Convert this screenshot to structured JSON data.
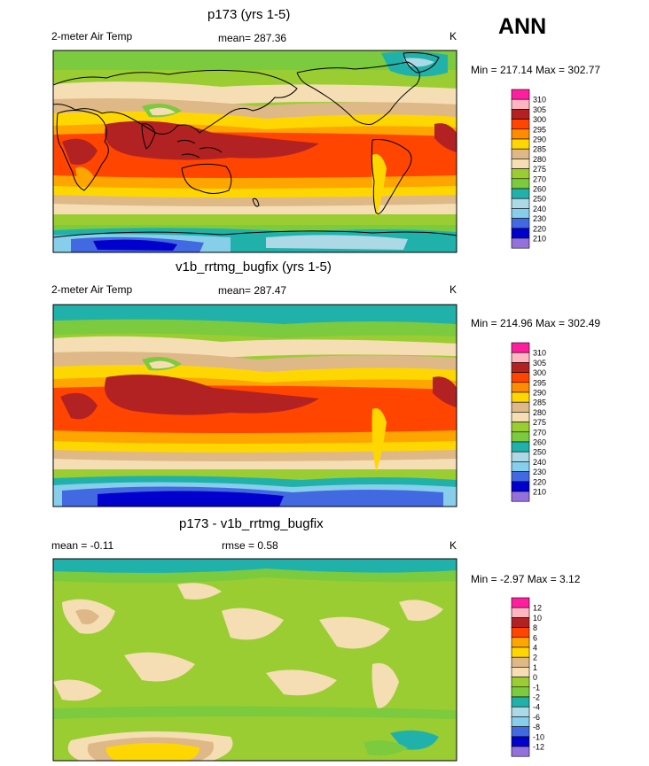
{
  "season_label": "ANN",
  "colors": {
    "pink": "#ff1e9e",
    "lightpink": "#ffb6c1",
    "darkred": "#b22222",
    "red": "#ff4500",
    "orange": "#ffa500",
    "yellow": "#ffd700",
    "tan": "#deb887",
    "cream": "#f5deb3",
    "olive": "#9acd32",
    "green": "#7cca3e",
    "teal": "#20b2aa",
    "lightblue": "#add8e6",
    "skyblue": "#87ceeb",
    "blue": "#4169e1",
    "navy": "#0000cd",
    "purple": "#9370db"
  },
  "panels": [
    {
      "title": "p173 (yrs 1-5)",
      "left_label": "2-meter Air Temp",
      "center_label": "mean= 287.36",
      "unit": "K",
      "minmax": "Min = 217.14 Max = 302.77",
      "legend": [
        "310",
        "305",
        "300",
        "295",
        "290",
        "285",
        "280",
        "275",
        "270",
        "260",
        "250",
        "240",
        "230",
        "220",
        "210"
      ],
      "legend_colors": [
        "#ff1e9e",
        "#ffb6c1",
        "#b22222",
        "#ff4500",
        "#ff8c00",
        "#ffd700",
        "#deb887",
        "#f5deb3",
        "#9acd32",
        "#7cca3e",
        "#20b2aa",
        "#add8e6",
        "#87ceeb",
        "#4169e1",
        "#0000cd",
        "#9370db"
      ]
    },
    {
      "title": "v1b_rrtmg_bugfix (yrs 1-5)",
      "left_label": "2-meter Air Temp",
      "center_label": "mean= 287.47",
      "unit": "K",
      "minmax": "Min = 214.96 Max = 302.49",
      "legend": [
        "310",
        "305",
        "300",
        "295",
        "290",
        "285",
        "280",
        "275",
        "270",
        "260",
        "250",
        "240",
        "230",
        "220",
        "210"
      ],
      "legend_colors": [
        "#ff1e9e",
        "#ffb6c1",
        "#b22222",
        "#ff4500",
        "#ff8c00",
        "#ffd700",
        "#deb887",
        "#f5deb3",
        "#9acd32",
        "#7cca3e",
        "#20b2aa",
        "#add8e6",
        "#87ceeb",
        "#4169e1",
        "#0000cd",
        "#9370db"
      ]
    },
    {
      "title": "p173 - v1b_rrtmg_bugfix",
      "left_label": "mean =  -0.11",
      "center_label": "rmse =   0.58",
      "unit": "K",
      "minmax": "Min =  -2.97 Max =   3.12",
      "legend": [
        "12",
        "10",
        "8",
        "6",
        "4",
        "2",
        "1",
        "0",
        "-1",
        "-2",
        "-4",
        "-6",
        "-8",
        "-10",
        "-12"
      ],
      "legend_colors": [
        "#ff1e9e",
        "#ffb6c1",
        "#b22222",
        "#ff4500",
        "#ffa500",
        "#ffd700",
        "#deb887",
        "#f5deb3",
        "#9acd32",
        "#7cca3e",
        "#20b2aa",
        "#add8e6",
        "#87ceeb",
        "#4169e1",
        "#0000cd",
        "#9370db"
      ]
    }
  ]
}
